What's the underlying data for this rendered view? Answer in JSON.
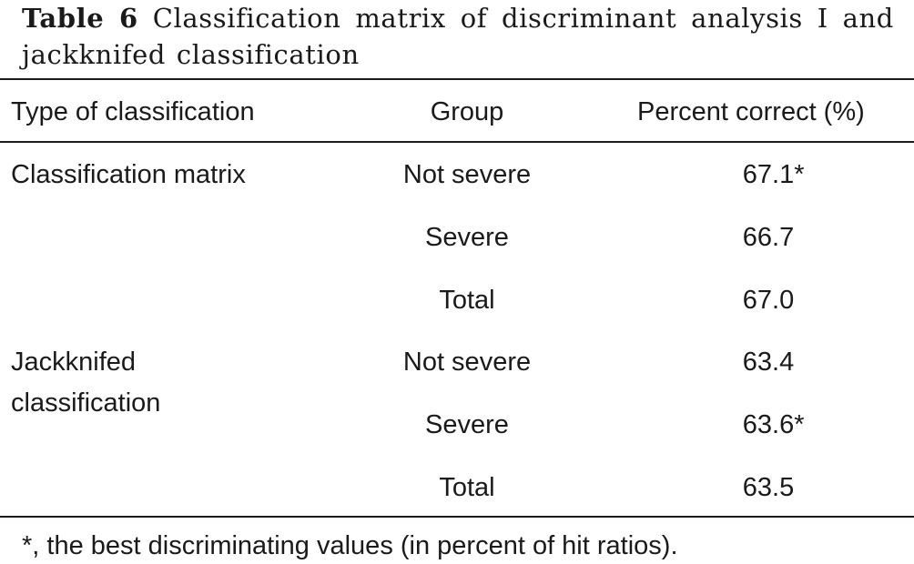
{
  "caption": {
    "label": "Table 6",
    "text": "Classification matrix of discriminant analysis I and jackknifed classification"
  },
  "table": {
    "headers": [
      "Type of classification",
      "Group",
      "Percent correct (%)"
    ],
    "sections": [
      {
        "type": "Classification matrix",
        "rows": [
          {
            "group": "Not severe",
            "value": "67.1",
            "mark": "*"
          },
          {
            "group": "Severe",
            "value": "66.7",
            "mark": ""
          },
          {
            "group": "Total",
            "value": "67.0",
            "mark": ""
          }
        ]
      },
      {
        "type": "Jackknifed classification",
        "rows": [
          {
            "group": "Not severe",
            "value": "63.4",
            "mark": ""
          },
          {
            "group": "Severe",
            "value": "63.6",
            "mark": "*"
          },
          {
            "group": "Total",
            "value": "63.5",
            "mark": ""
          }
        ]
      }
    ]
  },
  "footnote": "*, the best discriminating values (in percent of hit ratios)."
}
